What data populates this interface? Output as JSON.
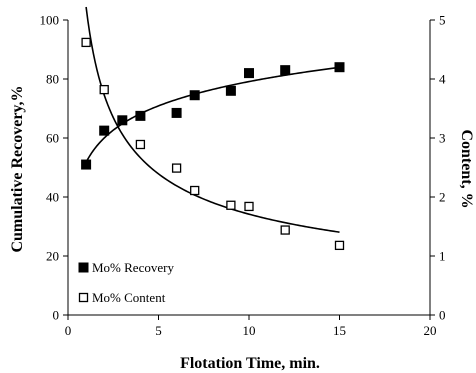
{
  "chart_data": {
    "type": "scatter",
    "xlabel": "Flotation Time, min.",
    "ylabel_left": "Cumulative Recovery,%",
    "ylabel_right": "Content, %",
    "xlim": [
      0,
      20
    ],
    "ylim_left": [
      0,
      100
    ],
    "ylim_right": [
      0,
      5
    ],
    "x_ticks": [
      "0",
      "5",
      "10",
      "15",
      "20"
    ],
    "y_left_ticks": [
      "0",
      "20",
      "40",
      "60",
      "80",
      "100"
    ],
    "y_right_ticks": [
      "0",
      "1",
      "2",
      "3",
      "4",
      "5"
    ],
    "grid": false,
    "legend_position": "bottom-left",
    "series": [
      {
        "name": "Mo% Recovery",
        "axis": "left",
        "marker": "filled-square",
        "x": [
          1,
          2,
          3,
          4,
          6,
          7,
          9,
          10,
          12,
          15
        ],
        "y": [
          51,
          62.5,
          66,
          67.5,
          68.5,
          74.5,
          76,
          82,
          83,
          84
        ]
      },
      {
        "name": "Mo% Content",
        "axis": "right",
        "marker": "open-square",
        "x": [
          1,
          2,
          4,
          6,
          7,
          9,
          10,
          15,
          12
        ],
        "y": [
          4.62,
          3.82,
          2.89,
          2.49,
          2.11,
          1.86,
          1.84,
          1.18,
          1.44
        ]
      }
    ],
    "trendlines": [
      {
        "series": "Mo% Recovery",
        "kind": "logarithmic",
        "x_range": [
          1,
          15
        ]
      },
      {
        "series": "Mo% Content",
        "kind": "power",
        "x_range": [
          1,
          15
        ]
      }
    ]
  }
}
